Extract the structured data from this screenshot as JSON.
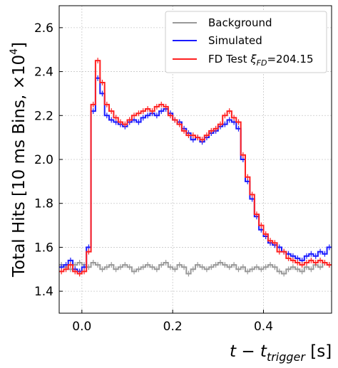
{
  "chart_data": {
    "type": "line",
    "xlabel_main": "t − t",
    "xlabel_sub": "trigger",
    "xlabel_unit": " [s]",
    "ylabel": "Total Hits [10 ms Bins, ×10",
    "ylabel_exp": "4",
    "ylabel_end": "]",
    "xlim": [
      -0.05,
      0.55
    ],
    "ylim": [
      1.3,
      2.7
    ],
    "xticks": [
      0.0,
      0.2,
      0.4
    ],
    "xtick_labels": [
      "0.0",
      "0.2",
      "0.4"
    ],
    "yticks": [
      1.4,
      1.6,
      1.8,
      2.0,
      2.2,
      2.4,
      2.6
    ],
    "ytick_labels": [
      "1.4",
      "1.6",
      "1.8",
      "2.0",
      "2.2",
      "2.4",
      "2.6"
    ],
    "grid": true,
    "step": true,
    "error_bars": true,
    "legend_position": "top-right",
    "legend": [
      {
        "label": "Background",
        "color": "#999999"
      },
      {
        "label": "Simulated",
        "color": "#1a1aff"
      },
      {
        "label_main": "FD Test ",
        "label_xi": "ξ",
        "label_sub": "FD",
        "label_value": "=204.15",
        "color": "#ff2020"
      }
    ],
    "series": [
      {
        "name": "Background",
        "color": "#999999",
        "x": [
          -0.05,
          -0.04,
          -0.03,
          -0.02,
          -0.01,
          0.0,
          0.01,
          0.02,
          0.03,
          0.04,
          0.05,
          0.06,
          0.07,
          0.08,
          0.09,
          0.1,
          0.11,
          0.12,
          0.13,
          0.14,
          0.15,
          0.16,
          0.17,
          0.18,
          0.19,
          0.2,
          0.21,
          0.22,
          0.23,
          0.24,
          0.25,
          0.26,
          0.27,
          0.28,
          0.29,
          0.3,
          0.31,
          0.32,
          0.33,
          0.34,
          0.35,
          0.36,
          0.37,
          0.38,
          0.39,
          0.4,
          0.41,
          0.42,
          0.43,
          0.44,
          0.45,
          0.46,
          0.47,
          0.48,
          0.49,
          0.5,
          0.51,
          0.52,
          0.53,
          0.54
        ],
        "y": [
          1.52,
          1.51,
          1.5,
          1.52,
          1.53,
          1.52,
          1.51,
          1.53,
          1.52,
          1.5,
          1.51,
          1.52,
          1.5,
          1.51,
          1.52,
          1.51,
          1.49,
          1.5,
          1.51,
          1.52,
          1.51,
          1.5,
          1.52,
          1.53,
          1.51,
          1.5,
          1.52,
          1.51,
          1.48,
          1.5,
          1.52,
          1.51,
          1.5,
          1.51,
          1.52,
          1.53,
          1.52,
          1.51,
          1.52,
          1.5,
          1.51,
          1.49,
          1.5,
          1.51,
          1.5,
          1.51,
          1.52,
          1.51,
          1.49,
          1.48,
          1.5,
          1.51,
          1.5,
          1.49,
          1.51,
          1.5,
          1.52,
          1.51,
          1.53,
          1.52
        ]
      },
      {
        "name": "Simulated",
        "color": "#1a1aff",
        "x": [
          -0.05,
          -0.04,
          -0.03,
          -0.02,
          -0.01,
          0.0,
          0.01,
          0.02,
          0.03,
          0.04,
          0.05,
          0.06,
          0.07,
          0.08,
          0.09,
          0.1,
          0.11,
          0.12,
          0.13,
          0.14,
          0.15,
          0.16,
          0.17,
          0.18,
          0.19,
          0.2,
          0.21,
          0.22,
          0.23,
          0.24,
          0.25,
          0.26,
          0.27,
          0.28,
          0.29,
          0.3,
          0.31,
          0.32,
          0.33,
          0.34,
          0.35,
          0.36,
          0.37,
          0.38,
          0.39,
          0.4,
          0.41,
          0.42,
          0.43,
          0.44,
          0.45,
          0.46,
          0.47,
          0.48,
          0.49,
          0.5,
          0.51,
          0.52,
          0.53,
          0.54
        ],
        "y": [
          1.51,
          1.52,
          1.54,
          1.5,
          1.49,
          1.51,
          1.6,
          2.22,
          2.37,
          2.3,
          2.2,
          2.18,
          2.17,
          2.16,
          2.15,
          2.17,
          2.18,
          2.17,
          2.19,
          2.2,
          2.21,
          2.2,
          2.22,
          2.23,
          2.21,
          2.18,
          2.17,
          2.14,
          2.12,
          2.09,
          2.1,
          2.08,
          2.1,
          2.12,
          2.13,
          2.15,
          2.16,
          2.18,
          2.17,
          2.14,
          2.0,
          1.9,
          1.82,
          1.74,
          1.68,
          1.65,
          1.62,
          1.61,
          1.6,
          1.58,
          1.57,
          1.56,
          1.55,
          1.54,
          1.56,
          1.57,
          1.56,
          1.58,
          1.57,
          1.6
        ]
      },
      {
        "name": "FD Test ξFD=204.15",
        "color": "#ff2020",
        "x": [
          -0.05,
          -0.04,
          -0.03,
          -0.02,
          -0.01,
          0.0,
          0.01,
          0.02,
          0.03,
          0.04,
          0.05,
          0.06,
          0.07,
          0.08,
          0.09,
          0.1,
          0.11,
          0.12,
          0.13,
          0.14,
          0.15,
          0.16,
          0.17,
          0.18,
          0.19,
          0.2,
          0.21,
          0.22,
          0.23,
          0.24,
          0.25,
          0.26,
          0.27,
          0.28,
          0.29,
          0.3,
          0.31,
          0.32,
          0.33,
          0.34,
          0.35,
          0.36,
          0.37,
          0.38,
          0.39,
          0.4,
          0.41,
          0.42,
          0.43,
          0.44,
          0.45,
          0.46,
          0.47,
          0.48,
          0.49,
          0.5,
          0.51,
          0.52,
          0.53,
          0.54
        ],
        "y": [
          1.49,
          1.5,
          1.52,
          1.49,
          1.48,
          1.49,
          1.58,
          2.25,
          2.45,
          2.35,
          2.25,
          2.22,
          2.19,
          2.17,
          2.16,
          2.18,
          2.2,
          2.21,
          2.22,
          2.23,
          2.22,
          2.24,
          2.25,
          2.24,
          2.2,
          2.18,
          2.16,
          2.13,
          2.11,
          2.11,
          2.1,
          2.09,
          2.11,
          2.13,
          2.14,
          2.16,
          2.2,
          2.22,
          2.19,
          2.17,
          2.02,
          1.92,
          1.84,
          1.75,
          1.7,
          1.66,
          1.63,
          1.62,
          1.58,
          1.58,
          1.55,
          1.54,
          1.53,
          1.52,
          1.53,
          1.54,
          1.53,
          1.54,
          1.53,
          1.52
        ]
      }
    ]
  }
}
